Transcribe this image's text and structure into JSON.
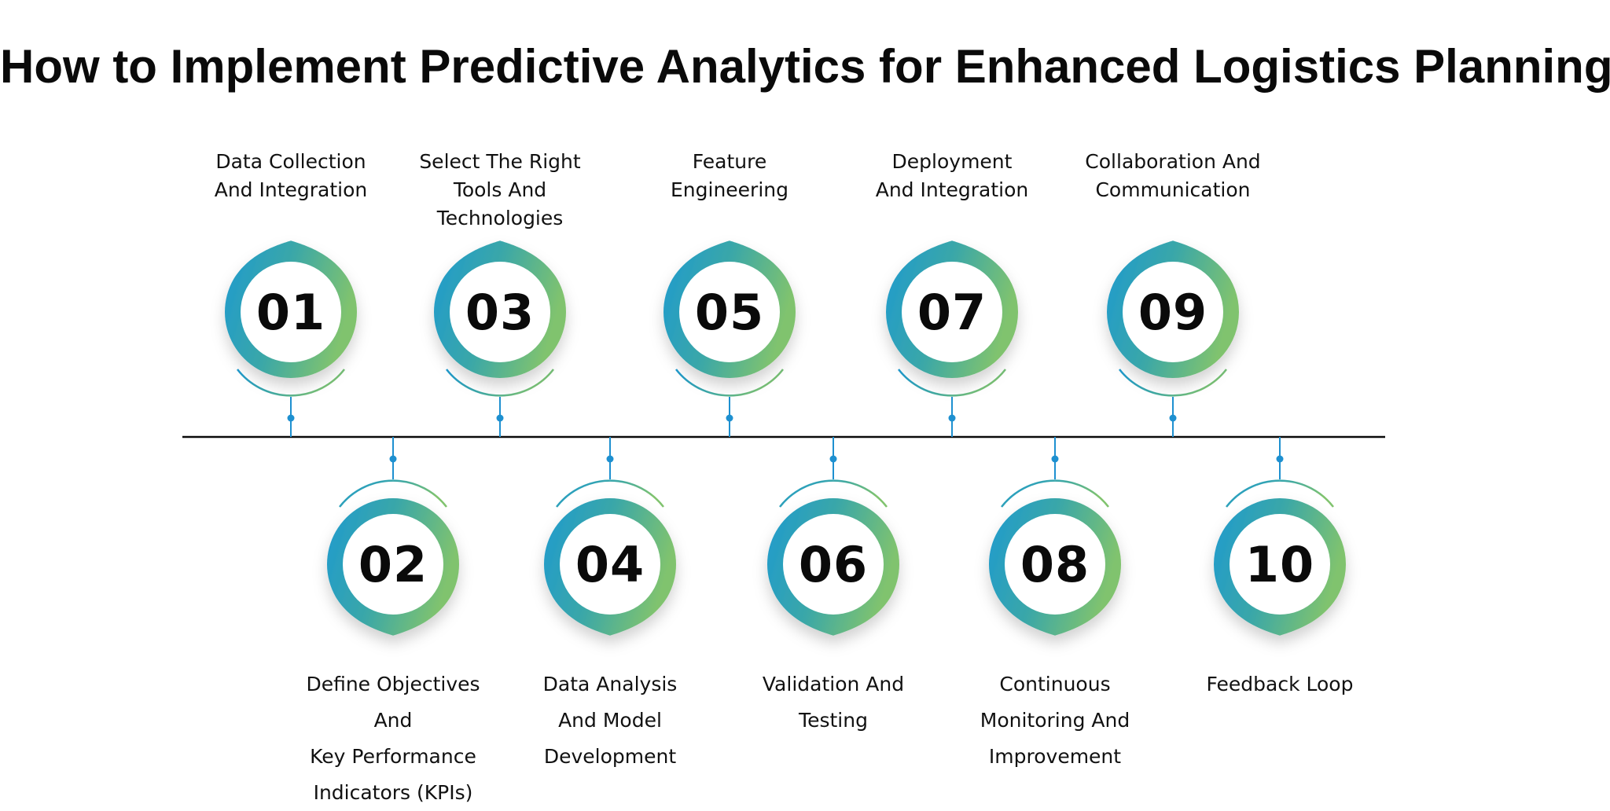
{
  "title": "How to Implement Predictive Analytics for Enhanced Logistics Planning?",
  "colors": {
    "gradient_start": "#1e9ad0",
    "gradient_mid": "#3aa7a8",
    "gradient_end": "#80c36e",
    "bottom_shade": "#3b8a8a",
    "timeline": "#0a0a0a",
    "connector": "#1e90d0",
    "number": "#0a0a0a"
  },
  "steps": [
    {
      "number": "01",
      "label": "Data Collection\nAnd Integration"
    },
    {
      "number": "02",
      "label": "Define Objectives And\nKey Performance\nIndicators (KPIs)"
    },
    {
      "number": "03",
      "label": "Select The Right\nTools And\nTechnologies"
    },
    {
      "number": "04",
      "label": "Data Analysis\nAnd Model\nDevelopment"
    },
    {
      "number": "05",
      "label": "Feature\nEngineering"
    },
    {
      "number": "06",
      "label": "Validation And\nTesting"
    },
    {
      "number": "07",
      "label": "Deployment\nAnd Integration"
    },
    {
      "number": "08",
      "label": "Continuous\nMonitoring And\nImprovement"
    },
    {
      "number": "09",
      "label": "Collaboration And\nCommunication"
    },
    {
      "number": "10",
      "label": "Feedback Loop"
    }
  ]
}
